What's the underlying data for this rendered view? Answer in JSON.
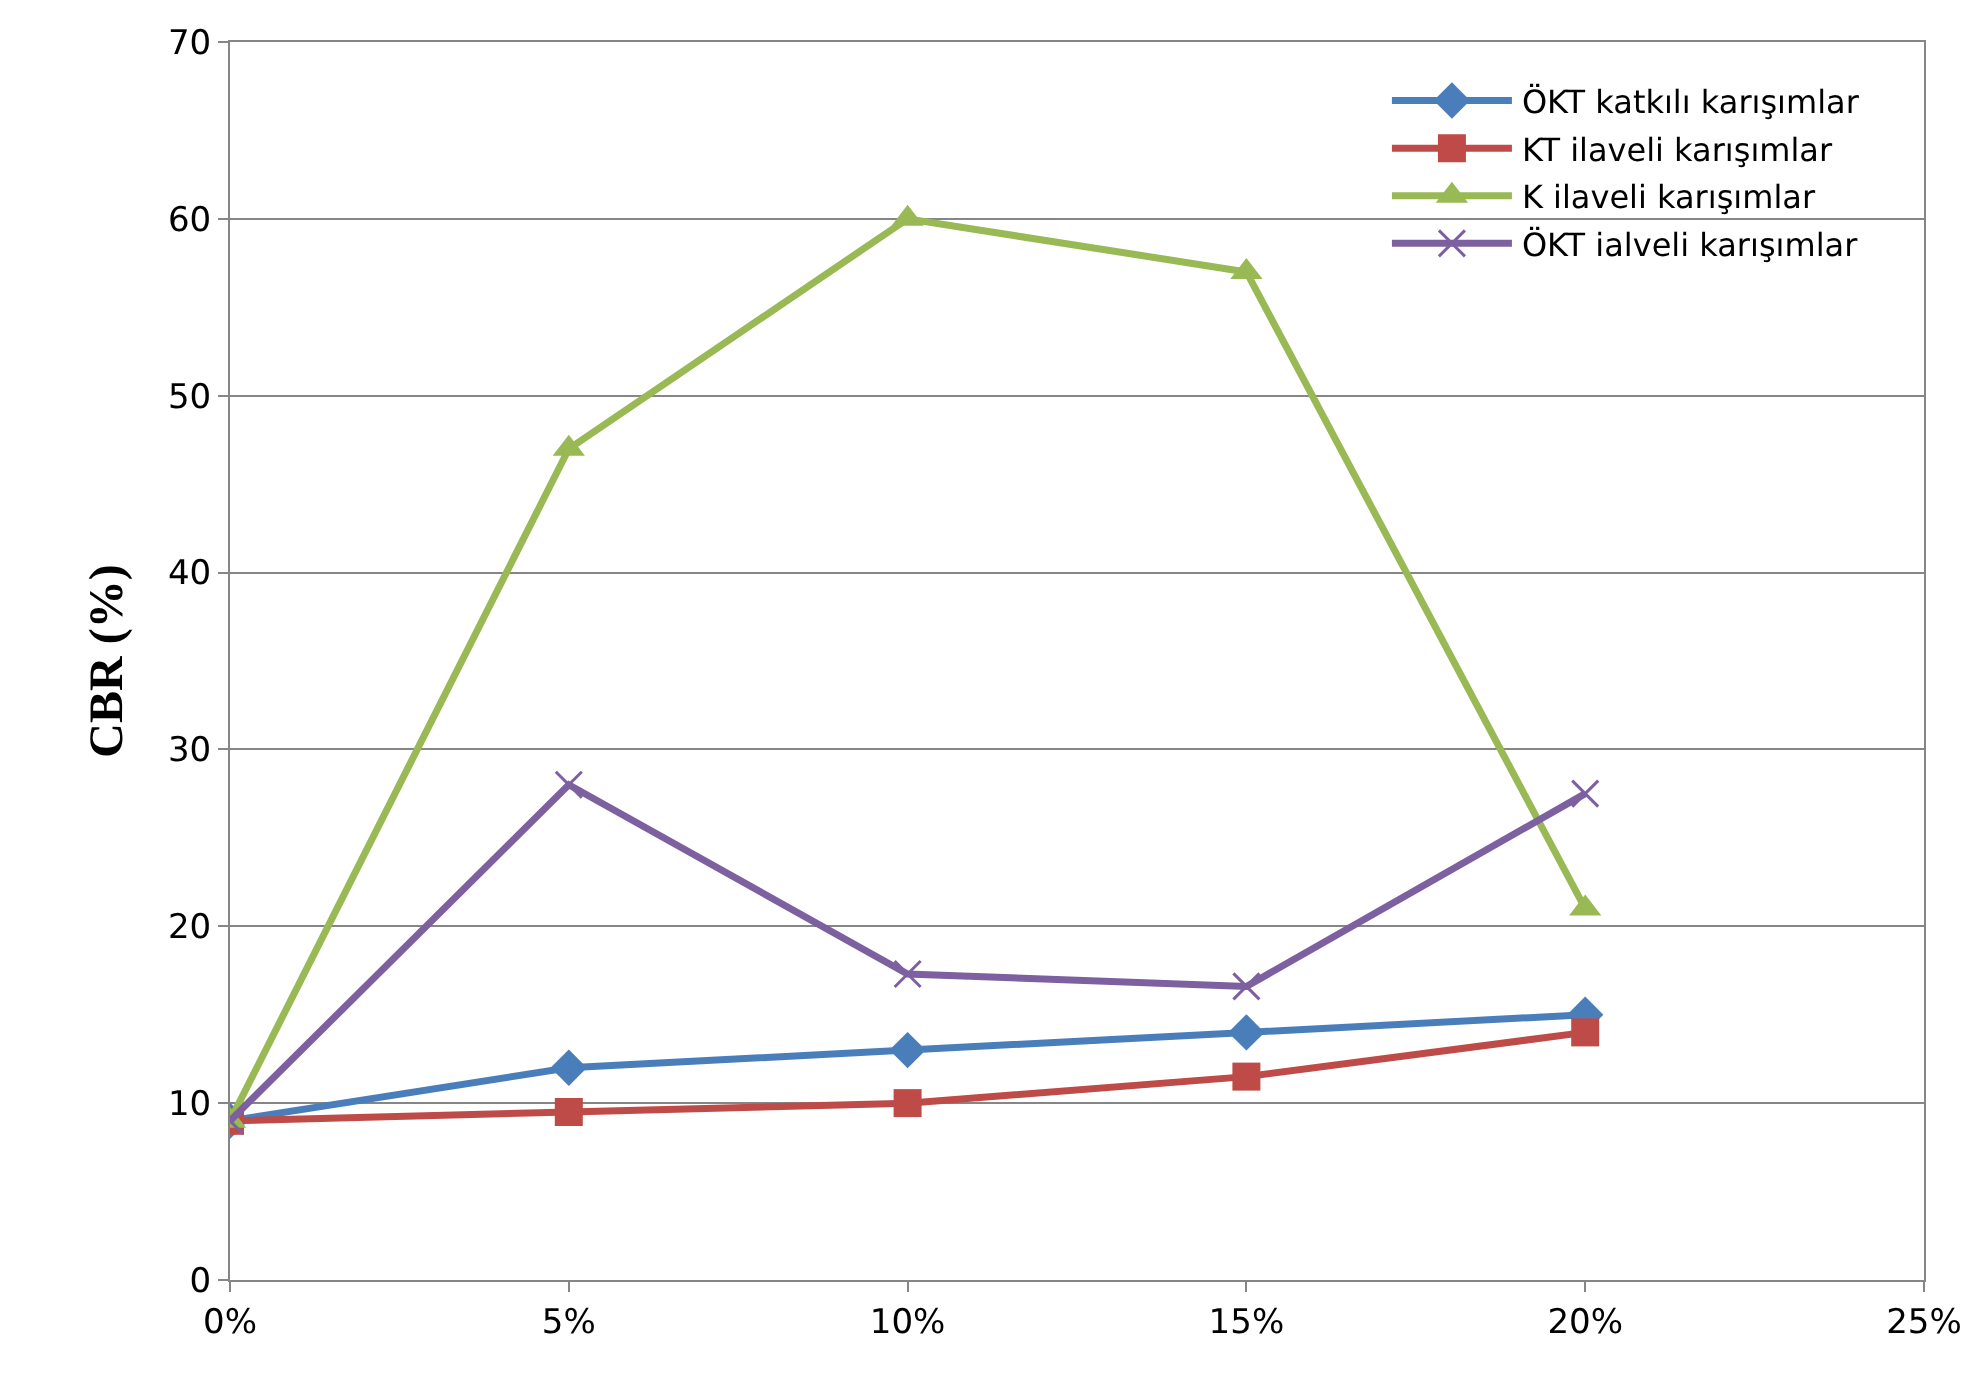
{
  "chart_data": {
    "type": "line",
    "ylabel": "CBR (%)",
    "x": [
      0,
      5,
      10,
      15,
      20
    ],
    "series": [
      {
        "name": "ÖKT katkılı karışımlar",
        "color": "#4a7ebb",
        "marker": "diamond",
        "values": [
          9,
          12,
          13,
          14,
          15
        ]
      },
      {
        "name": "KT ilaveli karışımlar",
        "color": "#be4b48",
        "marker": "square",
        "values": [
          9,
          9.5,
          10,
          11.5,
          14
        ]
      },
      {
        "name": "K ilaveli karışımlar",
        "color": "#98b954",
        "marker": "triangle",
        "values": [
          9,
          47,
          60,
          57,
          21
        ]
      },
      {
        "name": "ÖKT ialveli karışımlar",
        "color": "#7d60a0",
        "marker": "cross",
        "values": [
          9,
          28,
          17.3,
          16.6,
          27.5
        ]
      }
    ],
    "xlim": [
      0,
      25
    ],
    "xticks": [
      {
        "value": 0,
        "label": "0%"
      },
      {
        "value": 5,
        "label": "5%"
      },
      {
        "value": 10,
        "label": "10%"
      },
      {
        "value": 15,
        "label": "15%"
      },
      {
        "value": 20,
        "label": "20%"
      },
      {
        "value": 25,
        "label": "25%"
      }
    ],
    "ylim": [
      0,
      70
    ],
    "yticks": [
      0,
      10,
      20,
      30,
      40,
      50,
      60,
      70
    ],
    "grid": "y",
    "legend": "top right",
    "line_style": "solid"
  }
}
